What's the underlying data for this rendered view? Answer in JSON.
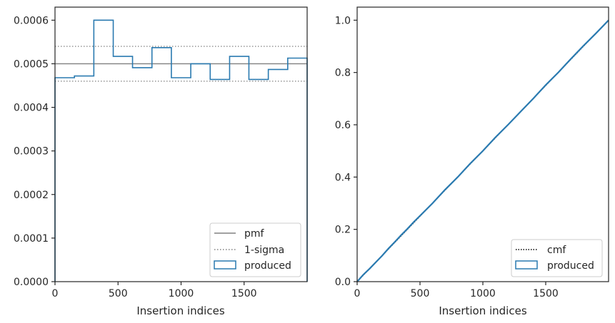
{
  "chart_data": [
    {
      "type": "step",
      "xlabel": "Insertion indices",
      "ylabel": "",
      "xlim": [
        0,
        2000
      ],
      "ylim": [
        0,
        0.00063
      ],
      "xticks": [
        0,
        500,
        1000,
        1500
      ],
      "xtick_labels": [
        "0",
        "500",
        "1000",
        "1500"
      ],
      "yticks": [
        0,
        0.0001,
        0.0002,
        0.0003,
        0.0004,
        0.0005,
        0.0006
      ],
      "ytick_labels": [
        "0.0000",
        "0.0001",
        "0.0002",
        "0.0003",
        "0.0004",
        "0.0005",
        "0.0006"
      ],
      "bin_edges": [
        0,
        154,
        308,
        462,
        615,
        769,
        923,
        1077,
        1231,
        1385,
        1538,
        1692,
        1846,
        2000
      ],
      "series": [
        {
          "name": "pmf",
          "kind": "hline",
          "value": 0.0005,
          "color": "#808080",
          "style": "solid"
        },
        {
          "name": "1-sigma",
          "kind": "hlines",
          "values": [
            0.00046,
            0.00054
          ],
          "color": "#808080",
          "style": "dotted"
        },
        {
          "name": "produced",
          "kind": "step-hist",
          "color": "#2a7ab0",
          "values": [
            0.000468,
            0.000472,
            0.0006,
            0.000517,
            0.000491,
            0.000537,
            0.000468,
            0.0005,
            0.000464,
            0.000517,
            0.000464,
            0.000487,
            0.000513
          ]
        }
      ],
      "legend": {
        "position": "bottom-right",
        "entries": [
          "pmf",
          "1-sigma",
          "produced"
        ]
      },
      "grid": false
    },
    {
      "type": "line",
      "xlabel": "Insertion indices",
      "ylabel": "",
      "xlim": [
        0,
        2000
      ],
      "ylim": [
        0,
        1.05
      ],
      "xticks": [
        0,
        500,
        1000,
        1500
      ],
      "xtick_labels": [
        "0",
        "500",
        "1000",
        "1500"
      ],
      "yticks": [
        0,
        0.2,
        0.4,
        0.6,
        0.8,
        1.0
      ],
      "ytick_labels": [
        "0.0",
        "0.2",
        "0.4",
        "0.6",
        "0.8",
        "1.0"
      ],
      "series": [
        {
          "name": "cmf",
          "kind": "line",
          "x": [
            0,
            2000
          ],
          "y": [
            0,
            1.0
          ],
          "color": "#000000",
          "style": "dotted"
        },
        {
          "name": "produced",
          "kind": "step-line",
          "color": "#2a7ab0",
          "x": [
            0,
            50,
            100,
            150,
            200,
            250,
            300,
            350,
            400,
            450,
            500,
            600,
            700,
            800,
            900,
            1000,
            1100,
            1200,
            1300,
            1400,
            1500,
            1600,
            1700,
            1800,
            1900,
            2000
          ],
          "y": [
            0,
            0.027,
            0.05,
            0.075,
            0.1,
            0.127,
            0.152,
            0.178,
            0.202,
            0.228,
            0.252,
            0.3,
            0.352,
            0.4,
            0.452,
            0.5,
            0.552,
            0.6,
            0.65,
            0.7,
            0.752,
            0.8,
            0.852,
            0.902,
            0.95,
            1.0
          ]
        }
      ],
      "legend": {
        "position": "bottom-right",
        "entries": [
          "cmf",
          "produced"
        ]
      },
      "grid": false
    }
  ]
}
